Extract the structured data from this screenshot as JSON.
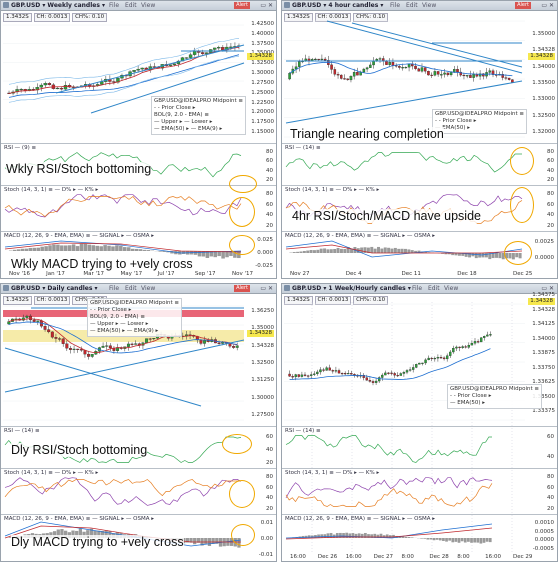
{
  "panels": {
    "weekly": {
      "title": "GBP.USD ▾ Weekly candles ▾",
      "bid": "1.3432S",
      "ch": "CH: 0.0013",
      "chp": "CH%: 0.10",
      "legend": [
        "GBP.USD@IDEALPRO Midpoint ≡",
        "- - Prior Close ▸",
        "BOL(9, 2.0 - EMA) ≡",
        "— Upper ▸ — Lower ▸",
        "— EMA(50) ▸ — EMA(9) ▸"
      ],
      "price_axis": [
        "1.42500",
        "1.40000",
        "1.37500",
        "1.35000",
        "1.32500",
        "1.30000",
        "1.27500",
        "1.25000",
        "1.22500",
        "1.20000",
        "1.17500",
        "1.15000"
      ],
      "x_axis": [
        "Nov '16",
        "Jan '17",
        "Mar '17",
        "May '17",
        "Jul '17",
        "Sep '17",
        "Nov '17"
      ],
      "rsi_hdr": "RSI — (9) ≡",
      "rsi_axis": [
        "80",
        "60",
        "40",
        "20"
      ],
      "stoch_hdr": "Stoch (14, 3, 1) ≡ — D% ▸ — K% ▸",
      "stoch_axis": [
        "80",
        "60",
        "40",
        "20"
      ],
      "macd_hdr": "MACD (12, 26, 9 - EMA, EMA) ≡ — SIGNAL ▸ — OSMA ▸",
      "macd_axis": [
        "0.025",
        "0.000",
        "-0.025"
      ],
      "caption_rsi": "Wkly RSI/Stoch bottoming",
      "caption_macd": "Wkly MACD trying to +vely cross"
    },
    "h4": {
      "title": "GBP.USD ▾ 4 hour candles ▾",
      "bid": "1.3432S",
      "ch": "CH: 0.0013",
      "chp": "CH%: 0.10",
      "legend": [
        "GBP.USD@IDEALPRO Midpoint ≡",
        "- - Prior Close ▸",
        "— EMA(50) ▸"
      ],
      "price_axis": [
        "1.35000",
        "1.34328",
        "1.34000",
        "1.33500",
        "1.33000",
        "1.32500",
        "1.32000"
      ],
      "x_axis": [
        "Nov 27",
        "Dec 4",
        "Dec 11",
        "Dec 18",
        "Dec 25"
      ],
      "caption_main": "Triangle nearing completion",
      "rsi_hdr": "RSI — (14) ≡",
      "rsi_axis": [
        "80",
        "60",
        "40",
        "20"
      ],
      "stoch_hdr": "Stoch (14, 3, 1) ≡ — D% ▸ — K% ▸",
      "stoch_axis": [
        "80",
        "60",
        "40",
        "20"
      ],
      "macd_hdr": "MACD (12, 26, 9 - EMA, EMA) ≡ — SIGNAL ▸ — OSMA ▸",
      "macd_axis": [
        "0.0025",
        "0.0000"
      ],
      "caption_stoch": "4hr RSI/Stoch/MACD have upside"
    },
    "daily": {
      "title": "GBP.USD ▾ Daily candles ▾",
      "bid": "1.3432S",
      "ch": "CH: 0.0013",
      "chp": "CH%: 0.10",
      "legend": [
        "GBP.USD@IDEALPRO Midpoint ≡",
        "- - Prior Close ▸",
        "BOL(9, 2.0 - EMA) ≡",
        "— Upper ▸ — Lower ▸",
        "— EMA(50) ▸ — EMA(9) ▸"
      ],
      "price_axis": [
        "1.36250",
        "1.35000",
        "1.34328",
        "1.32500",
        "1.31250",
        "1.30000",
        "1.27500"
      ],
      "rsi_hdr": "RSI — (14) ≡",
      "rsi_axis": [
        "60",
        "40",
        "20"
      ],
      "stoch_hdr": "Stoch (14, 3, 1) ≡ — D% ▸ — K% ▸",
      "stoch_axis": [
        "80",
        "60",
        "40",
        "20"
      ],
      "macd_hdr": "MACD (12, 26, 9 - EMA, EMA) ≡ — SIGNAL ▸ — OSMA ▸",
      "macd_axis": [
        "0.01",
        "0.00",
        "-0.01"
      ],
      "caption_rsi": "Dly RSI/Stoch bottoming",
      "caption_macd": "Dly MACD trying to +vely cross"
    },
    "hourly": {
      "title": "GBP.USD ▾ 1 Week/Hourly candles ▾",
      "bid": "1.3432S",
      "ch": "CH: 0.0013",
      "chp": "CH%: 0.10",
      "legend": [
        "GBP.USD@IDEALPRO Midpoint ≡",
        "- - Prior Close ▸",
        "— EMA(50) ▸"
      ],
      "price_axis": [
        "1.34375",
        "1.34328",
        "1.34125",
        "1.34000",
        "1.33875",
        "1.33750",
        "1.33625",
        "1.33500",
        "1.33375"
      ],
      "x_axis": [
        "16:00",
        "Dec 26",
        "16:00",
        "Dec 27",
        "8:00",
        "Dec 28",
        "8:00",
        "16:00",
        "Dec 29"
      ],
      "rsi_hdr": "RSI — (14) ≡",
      "rsi_axis": [
        "60",
        "40"
      ],
      "stoch_hdr": "Stoch (14, 3, 1) ≡ — D% ▸ — K% ▸",
      "stoch_axis": [
        "80",
        "60",
        "40",
        "20"
      ],
      "macd_hdr": "MACD (12, 26, 9 - EMA, EMA) ≡ — SIGNAL ▸ — OSMA ▸",
      "macd_axis": [
        "0.0010",
        "0.0005",
        "0.0000",
        "-0.0005"
      ]
    }
  },
  "menu": [
    "File",
    "Edit",
    "View"
  ],
  "alert_label": "Alert",
  "last_price": "1.34328",
  "colors": {
    "up": "#2e9e3a",
    "down": "#c0282d",
    "trend": "#2f86c8",
    "ema": "#1f6fd1",
    "ema9": "#c0282d",
    "highlight": "#f0a800",
    "resistance": "#e0324a",
    "support": "#f5e79a"
  },
  "chart_data": [
    {
      "type": "line",
      "title": "GBP.USD Weekly candles",
      "x": [
        "Nov '16",
        "Jan '17",
        "Mar '17",
        "May '17",
        "Jul '17",
        "Sep '17",
        "Nov '17"
      ],
      "series": [
        {
          "name": "GBP.USD@IDEALPRO Midpoint",
          "values": [
            1.245,
            1.235,
            1.245,
            1.285,
            1.305,
            1.33,
            1.335
          ]
        }
      ],
      "ylim": [
        1.15,
        1.43
      ]
    },
    {
      "type": "line",
      "title": "GBP.USD 4 hour candles",
      "x": [
        "Nov 27",
        "Dec 4",
        "Dec 11",
        "Dec 18",
        "Dec 25"
      ],
      "series": [
        {
          "name": "GBP.USD@IDEALPRO Midpoint",
          "values": [
            1.333,
            1.35,
            1.338,
            1.34,
            1.3433
          ]
        }
      ],
      "ylim": [
        1.32,
        1.352
      ]
    },
    {
      "type": "line",
      "title": "GBP.USD Daily candles",
      "series": [
        {
          "name": "GBP.USD@IDEALPRO Midpoint",
          "values": [
            1.34,
            1.355,
            1.32,
            1.31,
            1.33,
            1.345,
            1.34
          ]
        }
      ],
      "ylim": [
        1.27,
        1.365
      ]
    },
    {
      "type": "line",
      "title": "GBP.USD 1 Week/Hourly candles",
      "x": [
        "16:00",
        "Dec 26",
        "16:00",
        "Dec 27",
        "8:00",
        "Dec 28",
        "8:00",
        "16:00",
        "Dec 29"
      ],
      "series": [
        {
          "name": "GBP.USD@IDEALPRO Midpoint",
          "values": [
            1.3385,
            1.338,
            1.3375,
            1.3355,
            1.339,
            1.3405,
            1.341,
            1.3425,
            1.3435
          ]
        }
      ],
      "ylim": [
        1.333,
        1.3445
      ]
    }
  ]
}
